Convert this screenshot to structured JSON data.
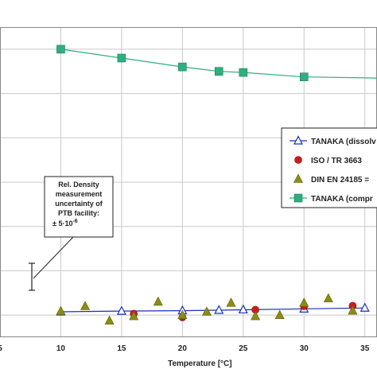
{
  "chart_data": {
    "type": "scatter",
    "xlabel": "Temperature [°C]",
    "xlim": [
      5,
      36
    ],
    "x_ticks": [
      5,
      10,
      15,
      20,
      25,
      30,
      35
    ],
    "x_tick_labels": [
      "5",
      "10",
      "15",
      "20",
      "25",
      "30",
      "35"
    ],
    "grid": true,
    "legend_position": "right",
    "series": [
      {
        "name": "TANAKA (dissolv",
        "marker": "triangle-open",
        "line": true,
        "color": "#1a2fb8",
        "x": [
          10,
          15,
          20,
          23,
          25,
          30,
          35
        ],
        "y": [
          0.15,
          0.18,
          0.2,
          0.22,
          0.24,
          0.28,
          0.32
        ]
      },
      {
        "name": "ISO / TR 3663",
        "marker": "circle",
        "line": false,
        "color": "#d11a1a",
        "x": [
          16,
          20,
          26,
          30,
          34
        ],
        "y": [
          0.06,
          -0.1,
          0.24,
          0.4,
          0.42
        ]
      },
      {
        "name": "DIN EN 24185 =",
        "marker": "triangle",
        "line": false,
        "color": "#8c8c14",
        "x": [
          10,
          12,
          14,
          16,
          18,
          20,
          22,
          24,
          26,
          28,
          30,
          32,
          34
        ],
        "y": [
          0.18,
          0.4,
          -0.25,
          -0.05,
          0.6,
          0.0,
          0.15,
          0.55,
          -0.05,
          0.0,
          0.55,
          0.75,
          0.2
        ]
      },
      {
        "name": "TANAKA (compr",
        "marker": "square",
        "line": true,
        "color": "#2fae7f",
        "x": [
          10,
          15,
          20,
          23,
          25,
          30
        ],
        "y": [
          12.0,
          11.6,
          11.2,
          11.0,
          10.95,
          10.75
        ]
      }
    ],
    "annotation": {
      "lines": [
        "Rel. Density",
        "measurement",
        "uncertainty of",
        "PTB facility:",
        "± 5·10"
      ],
      "superscript": "-6"
    }
  }
}
